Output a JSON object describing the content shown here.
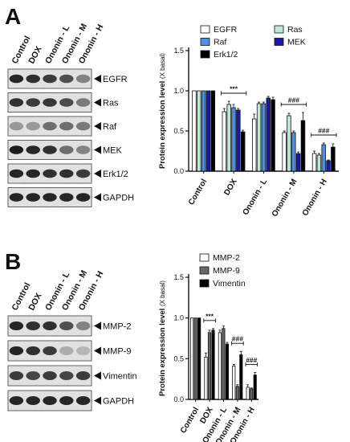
{
  "panel_a": {
    "letter": "A",
    "lanes": [
      "Control",
      "DOX",
      "Ononin - L",
      "Ononin - M",
      "Ononin - H"
    ],
    "blots": [
      {
        "label": "EGFR",
        "intensity": [
          0.9,
          0.85,
          0.8,
          0.7,
          0.45
        ]
      },
      {
        "label": "Ras",
        "intensity": [
          0.85,
          0.8,
          0.82,
          0.72,
          0.5
        ]
      },
      {
        "label": "Raf",
        "intensity": [
          0.35,
          0.35,
          0.55,
          0.55,
          0.5
        ]
      },
      {
        "label": "MEK",
        "intensity": [
          0.95,
          0.9,
          0.85,
          0.55,
          0.45
        ]
      },
      {
        "label": "Erk1/2",
        "intensity": [
          0.9,
          0.9,
          0.85,
          0.85,
          0.8
        ]
      },
      {
        "label": "GAPDH",
        "intensity": [
          0.9,
          0.9,
          0.9,
          0.9,
          0.9
        ]
      }
    ]
  },
  "panel_b": {
    "letter": "B",
    "lanes": [
      "Control",
      "DOX",
      "Ononin - L",
      "Ononin - M",
      "Ononin - H"
    ],
    "blots": [
      {
        "label": "MMP-2",
        "intensity": [
          0.9,
          0.85,
          0.85,
          0.7,
          0.45
        ]
      },
      {
        "label": "MMP-9",
        "intensity": [
          0.9,
          0.85,
          0.8,
          0.25,
          0.2
        ]
      },
      {
        "label": "Vimentin",
        "intensity": [
          0.8,
          0.75,
          0.8,
          0.75,
          0.8
        ]
      },
      {
        "label": "GAPDH",
        "intensity": [
          0.9,
          0.9,
          0.9,
          0.9,
          0.9
        ]
      }
    ]
  },
  "chart_data": [
    {
      "type": "bar",
      "ylabel": "Protein expression level",
      "ylabel_unit": "(X basal)",
      "ylim": [
        0,
        1.5
      ],
      "yticks": [
        "0.0",
        "0.5",
        "1.0",
        "1.5"
      ],
      "categories": [
        "Control",
        "DOX",
        "Ononin - L",
        "Ononin - M",
        "Ononin - H"
      ],
      "legend_placement": "top",
      "series": [
        {
          "name": "EGFR",
          "color": "#ffffff",
          "values": [
            1.0,
            0.74,
            0.65,
            0.48,
            0.22
          ],
          "errors": [
            0.0,
            0.04,
            0.06,
            0.02,
            0.03
          ]
        },
        {
          "name": "Ras",
          "color": "#bfe8d6",
          "values": [
            1.0,
            0.83,
            0.84,
            0.69,
            0.2
          ],
          "errors": [
            0.0,
            0.04,
            0.02,
            0.03,
            0.02
          ]
        },
        {
          "name": "Raf",
          "color": "#4f8fe0",
          "values": [
            1.0,
            0.79,
            0.84,
            0.48,
            0.33
          ],
          "errors": [
            0.0,
            0.04,
            0.02,
            0.02,
            0.02
          ]
        },
        {
          "name": "MEK",
          "color": "#1a1aa8",
          "values": [
            1.0,
            0.76,
            0.91,
            0.22,
            0.13
          ],
          "errors": [
            0.0,
            0.02,
            0.02,
            0.02,
            0.01
          ]
        },
        {
          "name": "Erk1/2",
          "color": "#000000",
          "values": [
            1.0,
            0.49,
            0.89,
            0.63,
            0.3
          ],
          "errors": [
            0.0,
            0.02,
            0.03,
            0.1,
            0.04
          ]
        }
      ],
      "annotations": [
        {
          "text": "***",
          "from": 1,
          "to": 1
        },
        {
          "text": "###",
          "from": 3,
          "to": 3
        },
        {
          "text": "###",
          "from": 4,
          "to": 4
        }
      ]
    },
    {
      "type": "bar",
      "ylabel": "Protein expression level",
      "ylabel_unit": "(X basal)",
      "ylim": [
        0,
        1.5
      ],
      "yticks": [
        "0.0",
        "0.5",
        "1.0",
        "1.5"
      ],
      "categories": [
        "Control",
        "DOX",
        "Ononin - L",
        "Ononin - M",
        "Ononin - H"
      ],
      "legend_placement": "top",
      "series": [
        {
          "name": "MMP-2",
          "color": "#ffffff",
          "values": [
            1.0,
            0.52,
            0.82,
            0.41,
            0.15
          ],
          "errors": [
            0.0,
            0.05,
            0.03,
            0.02,
            0.03
          ]
        },
        {
          "name": "MMP-9",
          "color": "#666666",
          "values": [
            1.0,
            0.82,
            0.87,
            0.16,
            0.13
          ],
          "errors": [
            0.0,
            0.03,
            0.03,
            0.02,
            0.01
          ]
        },
        {
          "name": "Vimentin",
          "color": "#000000",
          "values": [
            1.0,
            0.85,
            0.68,
            0.55,
            0.3
          ],
          "errors": [
            0.0,
            0.02,
            0.02,
            0.04,
            0.03
          ]
        }
      ],
      "annotations": [
        {
          "text": "***",
          "from": 1,
          "to": 1
        },
        {
          "text": "###",
          "from": 3,
          "to": 3
        },
        {
          "text": "###",
          "from": 4,
          "to": 4
        }
      ]
    }
  ]
}
